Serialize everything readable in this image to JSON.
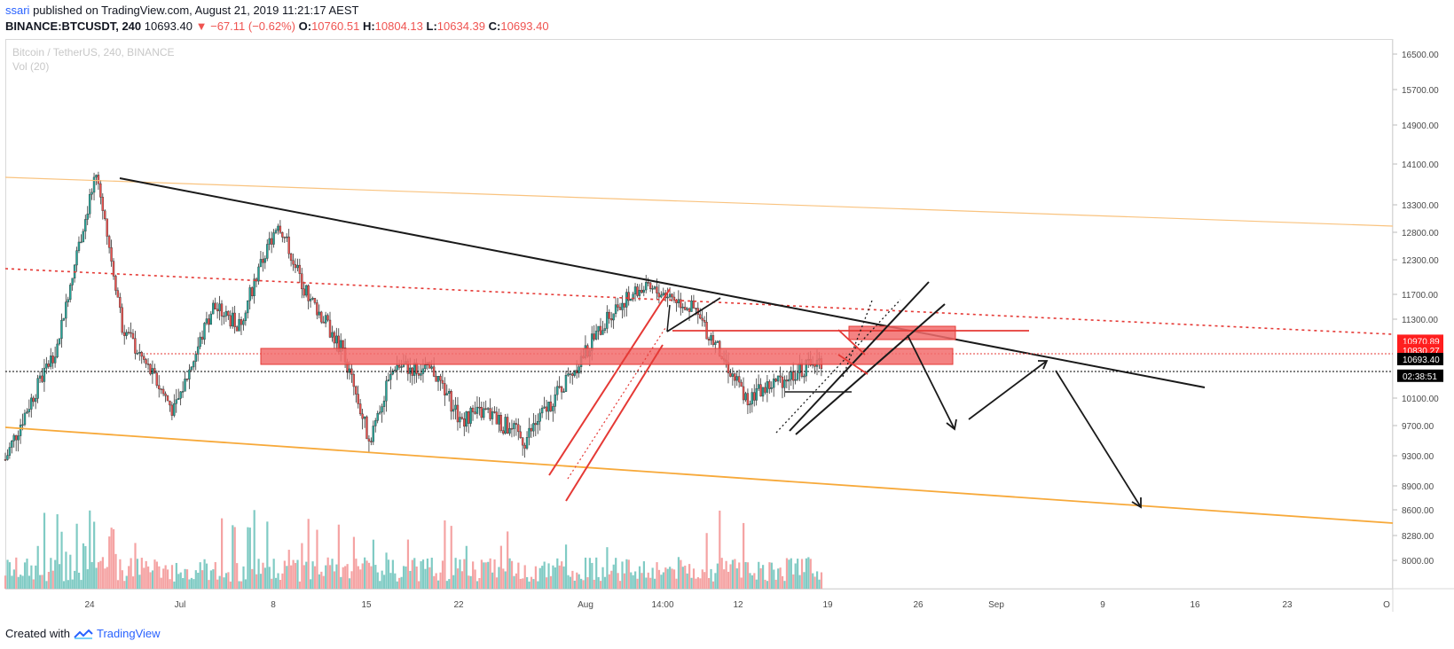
{
  "header": {
    "author": "ssari",
    "published_text": "published on TradingView.com, August 21, 2019 11:21:17 AEST",
    "symbol": "BINANCE:BTCUSDT, 240",
    "last": "10693.40",
    "change": "▼ −67.11 (−0.62%)",
    "open": "10760.51",
    "high": "10804.13",
    "low": "10634.39",
    "close": "10693.40",
    "o_label": "O:",
    "h_label": "H:",
    "l_label": "L:",
    "c_label": "C:"
  },
  "watermark": {
    "instrument": "Bitcoin / TetherUS, 240, BINANCE",
    "volume": "Vol (20)"
  },
  "footer": {
    "created_with": "Created with",
    "brand": "TradingView"
  },
  "price_badges": [
    {
      "label": "10970.89",
      "value": 10970.89,
      "color": "#ff1e1e"
    },
    {
      "label": "10830.27",
      "value": 10830.27,
      "color": "#ff1e1e"
    },
    {
      "label": "10693.40",
      "value": 10693.4,
      "color": "#000000"
    },
    {
      "label": "02:38:51",
      "value": 10440,
      "color": "#000000"
    }
  ],
  "chart_data": {
    "type": "candlestick",
    "title": "Bitcoin / TetherUS, 240, BINANCE",
    "y_axis_ticks": [
      16500,
      15700,
      14900,
      14100,
      13300,
      12800,
      12300,
      11700,
      11300,
      10100,
      9700,
      9300,
      8900,
      8600,
      8280,
      8000
    ],
    "y_axis_labels": [
      "16500.00",
      "15700.00",
      "14900.00",
      "14100.00",
      "13300.00",
      "12800.00",
      "12300.00",
      "11700.00",
      "11300.00",
      "10100.00",
      "9700.00",
      "9300.00",
      "8900.00",
      "8600.00",
      "8280.00",
      "8000.00"
    ],
    "x_axis_labels": [
      "24",
      "Jul",
      "8",
      "15",
      "22",
      "Aug",
      "14:00",
      "12",
      "19",
      "26",
      "Sep",
      "9",
      "16",
      "23",
      "O"
    ],
    "price_anchors": [
      {
        "date": "2019-06-19",
        "price": 9250
      },
      {
        "date": "2019-06-23",
        "price": 10900
      },
      {
        "date": "2019-06-26",
        "price": 13900
      },
      {
        "date": "2019-06-28",
        "price": 11200
      },
      {
        "date": "2019-07-02",
        "price": 9900
      },
      {
        "date": "2019-07-05",
        "price": 11500
      },
      {
        "date": "2019-07-07",
        "price": 11200
      },
      {
        "date": "2019-07-10",
        "price": 13000
      },
      {
        "date": "2019-07-12",
        "price": 11800
      },
      {
        "date": "2019-07-15",
        "price": 10800
      },
      {
        "date": "2019-07-17",
        "price": 9500
      },
      {
        "date": "2019-07-19",
        "price": 10600
      },
      {
        "date": "2019-07-22",
        "price": 10500
      },
      {
        "date": "2019-07-24",
        "price": 9800
      },
      {
        "date": "2019-07-26",
        "price": 9900
      },
      {
        "date": "2019-07-29",
        "price": 9500
      },
      {
        "date": "2019-08-01",
        "price": 10300
      },
      {
        "date": "2019-08-05",
        "price": 11500
      },
      {
        "date": "2019-08-07",
        "price": 11800
      },
      {
        "date": "2019-08-09",
        "price": 11700
      },
      {
        "date": "2019-08-11",
        "price": 11450
      },
      {
        "date": "2019-08-13",
        "price": 10800
      },
      {
        "date": "2019-08-15",
        "price": 10100
      },
      {
        "date": "2019-08-17",
        "price": 10300
      },
      {
        "date": "2019-08-19",
        "price": 10500
      },
      {
        "date": "2019-08-21",
        "price": 10693.4
      }
    ],
    "annotations": {
      "resistance_zone_low": 10830.27,
      "resistance_zone_high": 10970.89,
      "red_dotted_level": 10970.89,
      "black_dotted_level": 10693.4
    },
    "candle_up_color": "#26a69a",
    "candle_down_color": "#ef5350",
    "grid": false
  }
}
